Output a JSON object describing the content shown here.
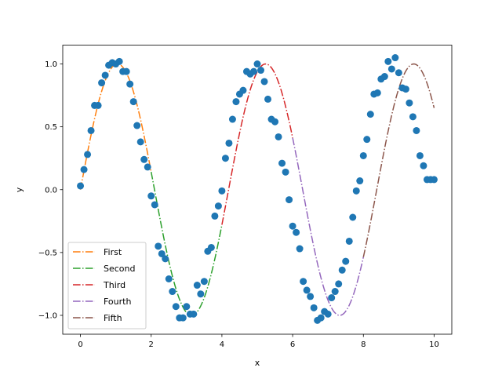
{
  "chart_data": {
    "type": "line",
    "title": "",
    "xlabel": "x",
    "ylabel": "y",
    "xlim": [
      -0.5,
      10.5
    ],
    "ylim": [
      -1.15,
      1.15
    ],
    "xticks": [
      0,
      2,
      4,
      6,
      8,
      10
    ],
    "yticks": [
      -1.0,
      -0.5,
      0.0,
      0.5,
      1.0
    ],
    "xtick_labels": [
      "0",
      "2",
      "4",
      "6",
      "8",
      "10"
    ],
    "ytick_labels": [
      "−1.0",
      "−0.5",
      "0.0",
      "0.5",
      "1.0"
    ],
    "grid": false,
    "legend_position": "lower-left",
    "scatter": {
      "color": "#1f77b4",
      "x": [
        0.0,
        0.1,
        0.2,
        0.3,
        0.4,
        0.5,
        0.6,
        0.7,
        0.8,
        0.9,
        1.0,
        1.1,
        1.2,
        1.3,
        1.4,
        1.5,
        1.6,
        1.7,
        1.8,
        1.9,
        2.0,
        2.1,
        2.2,
        2.3,
        2.4,
        2.5,
        2.6,
        2.7,
        2.8,
        2.9,
        3.0,
        3.1,
        3.2,
        3.3,
        3.4,
        3.5,
        3.6,
        3.7,
        3.8,
        3.9,
        4.0,
        4.1,
        4.2,
        4.3,
        4.4,
        4.5,
        4.6,
        4.7,
        4.8,
        4.9,
        5.0,
        5.1,
        5.2,
        5.3,
        5.4,
        5.5,
        5.6,
        5.7,
        5.8,
        5.9,
        6.0,
        6.1,
        6.2,
        6.3,
        6.4,
        6.5,
        6.6,
        6.7,
        6.8,
        6.9,
        7.0,
        7.1,
        7.2,
        7.3,
        7.4,
        7.5,
        7.6,
        7.7,
        7.8,
        7.9,
        8.0,
        8.1,
        8.2,
        8.3,
        8.4,
        8.5,
        8.6,
        8.7,
        8.8,
        8.9,
        9.0,
        9.1,
        9.2,
        9.3,
        9.4,
        9.5,
        9.6,
        9.7,
        9.8,
        9.9,
        10.0
      ],
      "y": [
        0.03,
        0.16,
        0.28,
        0.47,
        0.67,
        0.67,
        0.85,
        0.91,
        0.99,
        1.01,
        1.0,
        1.02,
        0.94,
        0.94,
        0.84,
        0.7,
        0.51,
        0.38,
        0.24,
        0.18,
        -0.05,
        -0.12,
        -0.45,
        -0.51,
        -0.55,
        -0.71,
        -0.81,
        -0.93,
        -1.02,
        -1.02,
        -0.93,
        -0.99,
        -0.99,
        -0.76,
        -0.83,
        -0.73,
        -0.49,
        -0.46,
        -0.21,
        -0.13,
        -0.01,
        0.25,
        0.37,
        0.56,
        0.7,
        0.76,
        0.79,
        0.94,
        0.92,
        0.94,
        1.0,
        0.95,
        0.86,
        0.72,
        0.56,
        0.54,
        0.42,
        0.21,
        0.14,
        -0.08,
        -0.29,
        -0.34,
        -0.47,
        -0.73,
        -0.8,
        -0.85,
        -0.94,
        -1.04,
        -1.02,
        -0.97,
        -0.99,
        -0.86,
        -0.81,
        -0.75,
        -0.64,
        -0.57,
        -0.41,
        -0.22,
        -0.01,
        0.07,
        0.27,
        0.4,
        0.6,
        0.76,
        0.77,
        0.88,
        0.9,
        1.02,
        0.96,
        1.05,
        0.93,
        0.81,
        0.8,
        0.69,
        0.58,
        0.47,
        0.27,
        0.19,
        0.08,
        0.08,
        0.08
      ]
    },
    "series": [
      {
        "name": "First",
        "color": "#ff7f0e",
        "x_range": [
          0,
          2
        ]
      },
      {
        "name": "Second",
        "color": "#2ca02c",
        "x_range": [
          2,
          4
        ]
      },
      {
        "name": "Third",
        "color": "#d62728",
        "x_range": [
          4,
          6
        ]
      },
      {
        "name": "Fourth",
        "color": "#9467bd",
        "x_range": [
          6,
          8
        ]
      },
      {
        "name": "Fifth",
        "color": "#8c564b",
        "x_range": [
          8,
          10
        ]
      }
    ]
  }
}
